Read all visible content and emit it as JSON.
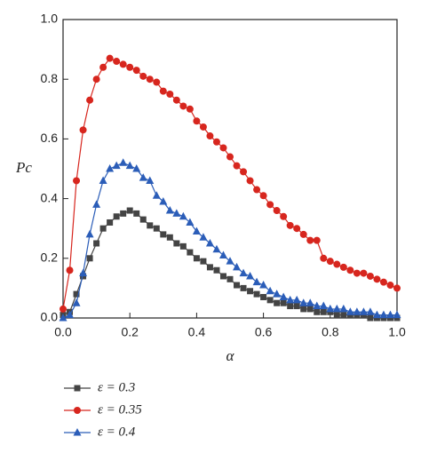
{
  "chart_data": {
    "type": "line",
    "xlabel": "α",
    "ylabel": "Pc",
    "xlim": [
      0,
      1
    ],
    "ylim": [
      0,
      1
    ],
    "xticks": [
      {
        "value": 0,
        "label": "0.0"
      },
      0.2,
      0.4,
      0.6,
      0.8,
      {
        "value": 1,
        "label": "1.0"
      }
    ],
    "yticks": [
      {
        "value": 0,
        "label": "0.0"
      },
      0.2,
      0.4,
      0.6,
      0.8,
      {
        "value": 1,
        "label": "1.0"
      }
    ],
    "x": [
      0,
      0.02,
      0.04,
      0.06,
      0.08,
      0.1,
      0.12,
      0.14,
      0.16,
      0.18,
      0.2,
      0.22,
      0.24,
      0.26,
      0.28,
      0.3,
      0.32,
      0.34,
      0.36,
      0.38,
      0.4,
      0.42,
      0.44,
      0.46,
      0.48,
      0.5,
      0.52,
      0.54,
      0.56,
      0.58,
      0.6,
      0.62,
      0.64,
      0.66,
      0.68,
      0.7,
      0.72,
      0.74,
      0.76,
      0.78,
      0.8,
      0.82,
      0.84,
      0.86,
      0.88,
      0.9,
      0.92,
      0.94,
      0.96,
      0.98,
      1
    ],
    "series": [
      {
        "name": "ε = 0.3",
        "color": "#444444",
        "marker": "square",
        "values": [
          0.01,
          0.02,
          0.08,
          0.14,
          0.2,
          0.25,
          0.3,
          0.32,
          0.34,
          0.35,
          0.36,
          0.35,
          0.33,
          0.31,
          0.3,
          0.28,
          0.27,
          0.25,
          0.24,
          0.22,
          0.2,
          0.19,
          0.17,
          0.16,
          0.14,
          0.13,
          0.11,
          0.1,
          0.09,
          0.08,
          0.07,
          0.06,
          0.05,
          0.05,
          0.04,
          0.04,
          0.03,
          0.03,
          0.02,
          0.02,
          0.02,
          0.01,
          0.01,
          0.01,
          0.01,
          0.01,
          0,
          0,
          0,
          0,
          0
        ]
      },
      {
        "name": "ε = 0.35",
        "color": "#d7261e",
        "marker": "circle",
        "values": [
          0.03,
          0.16,
          0.46,
          0.63,
          0.73,
          0.8,
          0.84,
          0.87,
          0.86,
          0.85,
          0.84,
          0.83,
          0.81,
          0.8,
          0.79,
          0.76,
          0.75,
          0.73,
          0.71,
          0.7,
          0.66,
          0.64,
          0.61,
          0.59,
          0.57,
          0.54,
          0.51,
          0.49,
          0.46,
          0.43,
          0.41,
          0.38,
          0.36,
          0.34,
          0.31,
          0.3,
          0.28,
          0.26,
          0.26,
          0.2,
          0.19,
          0.18,
          0.17,
          0.16,
          0.15,
          0.15,
          0.14,
          0.13,
          0.12,
          0.11,
          0.1
        ]
      },
      {
        "name": "ε = 0.4",
        "color": "#2b5db8",
        "marker": "triangle",
        "values": [
          0,
          0.01,
          0.05,
          0.15,
          0.28,
          0.38,
          0.46,
          0.5,
          0.51,
          0.52,
          0.51,
          0.5,
          0.47,
          0.46,
          0.41,
          0.39,
          0.36,
          0.35,
          0.34,
          0.32,
          0.29,
          0.27,
          0.25,
          0.23,
          0.21,
          0.19,
          0.17,
          0.15,
          0.14,
          0.12,
          0.11,
          0.09,
          0.08,
          0.07,
          0.06,
          0.06,
          0.05,
          0.05,
          0.04,
          0.04,
          0.03,
          0.03,
          0.03,
          0.02,
          0.02,
          0.02,
          0.02,
          0.01,
          0.01,
          0.01,
          0.01
        ]
      }
    ]
  }
}
